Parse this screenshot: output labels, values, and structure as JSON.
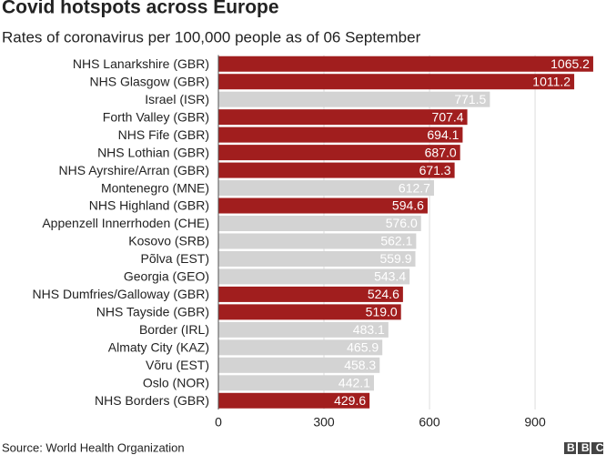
{
  "chart_data": {
    "type": "barh",
    "title": "Covid hotspots across Europe",
    "subtitle": "Rates of coronavirus per 100,000 people as of 06 September",
    "categories": [
      "NHS Lanarkshire (GBR)",
      "NHS Glasgow (GBR)",
      "Israel (ISR)",
      "Forth Valley (GBR)",
      "NHS Fife (GBR)",
      "NHS Lothian (GBR)",
      "NHS Ayrshire/Arran (GBR)",
      "Montenegro (MNE)",
      "NHS Highland (GBR)",
      "Appenzell Innerrhoden (CHE)",
      "Kosovo (SRB)",
      "Põlva (EST)",
      "Georgia (GEO)",
      "NHS Dumfries/Galloway (GBR)",
      "NHS Tayside (GBR)",
      "Border (IRL)",
      "Almaty City (KAZ)",
      "Võru (EST)",
      "Oslo (NOR)",
      "NHS Borders (GBR)"
    ],
    "values": [
      1065.2,
      1011.2,
      771.5,
      707.4,
      694.1,
      687.0,
      671.3,
      612.7,
      594.6,
      576.0,
      562.1,
      559.9,
      543.4,
      524.6,
      519.0,
      483.1,
      465.9,
      458.3,
      442.1,
      429.6
    ],
    "value_labels": [
      "1065.2",
      "1011.2",
      "771.5",
      "707.4",
      "694.1",
      "687.0",
      "671.3",
      "612.7",
      "594.6",
      "576.0",
      "562.1",
      "559.9",
      "543.4",
      "524.6",
      "519.0",
      "483.1",
      "465.9",
      "458.3",
      "442.1",
      "429.6"
    ],
    "colors": [
      "#a11e1e",
      "#a11e1e",
      "#d3d3d3",
      "#a11e1e",
      "#a11e1e",
      "#a11e1e",
      "#a11e1e",
      "#d3d3d3",
      "#a11e1e",
      "#d3d3d3",
      "#d3d3d3",
      "#d3d3d3",
      "#d3d3d3",
      "#a11e1e",
      "#a11e1e",
      "#d3d3d3",
      "#d3d3d3",
      "#d3d3d3",
      "#d3d3d3",
      "#a11e1e"
    ],
    "xlim": [
      0,
      1086
    ],
    "xticks": [
      0,
      300,
      600,
      900
    ],
    "grid": true,
    "source": "Source: World Health Organization",
    "logo": "BBC"
  }
}
